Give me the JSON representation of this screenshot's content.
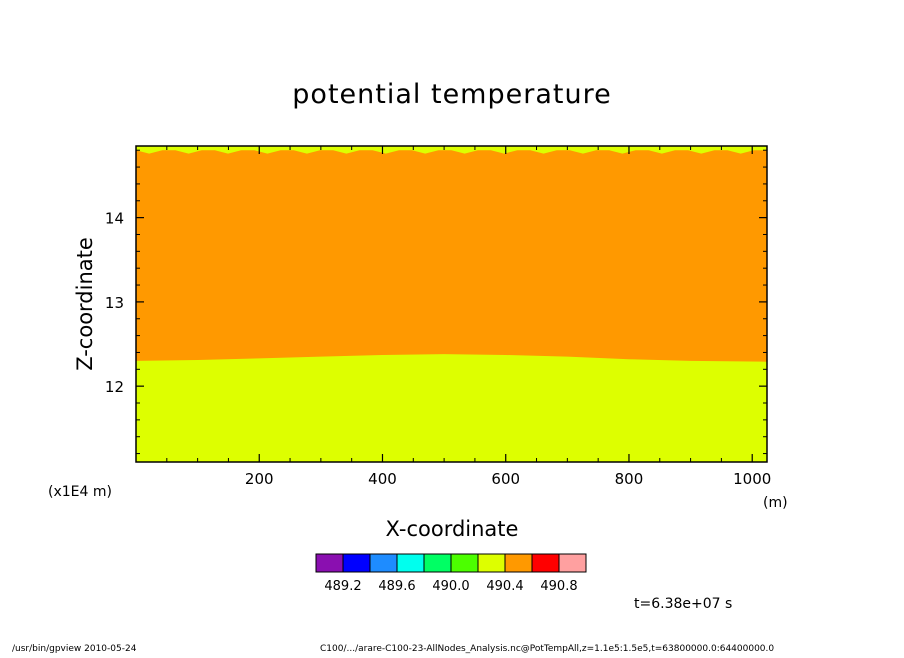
{
  "chart_data": {
    "type": "heatmap",
    "title": "potential temperature",
    "xlabel": "X-coordinate",
    "ylabel": "Z-coordinate",
    "x_unit": "(m)",
    "y_scale_label": "(x1E4 m)",
    "xlim": [
      0,
      1024
    ],
    "ylim": [
      11.1,
      14.85
    ],
    "x_ticks": [
      200,
      400,
      600,
      800,
      1000
    ],
    "y_ticks": [
      12,
      13,
      14
    ],
    "x_tick_labels": [
      "200",
      "400",
      "600",
      "800",
      "1000"
    ],
    "y_tick_labels": [
      "12",
      "13",
      "14"
    ],
    "levels": [
      "489.2",
      "489.6",
      "490.0",
      "490.4",
      "490.8"
    ],
    "colorbar_colors": [
      "#8a0fb0",
      "#0000ff",
      "#1e8cff",
      "#00ffee",
      "#00ff64",
      "#4cff00",
      "#ddff00",
      "#ff9900",
      "#ff0000",
      "#ffa0a0"
    ],
    "regions": [
      {
        "range": "490.0-490.2",
        "color": "#ddff00",
        "z_bottom": 11.1,
        "z_top": 12.32
      },
      {
        "range": "490.2-490.4",
        "color": "#ff9900",
        "z_bottom": 12.32,
        "z_top": 14.8
      }
    ],
    "interface_profile": {
      "x": [
        0,
        100,
        200,
        300,
        400,
        500,
        600,
        700,
        800,
        900,
        1024
      ],
      "z": [
        12.3,
        12.31,
        12.33,
        12.35,
        12.37,
        12.38,
        12.37,
        12.35,
        12.32,
        12.3,
        12.29
      ]
    },
    "time_label": "t=6.38e+07 s"
  },
  "footer": {
    "left": "/usr/bin/gpview   2010-05-24",
    "right": "C100/.../arare-C100-23-AllNodes_Analysis.nc@PotTempAll,z=1.1e5:1.5e5,t=63800000.0:64400000.0"
  }
}
